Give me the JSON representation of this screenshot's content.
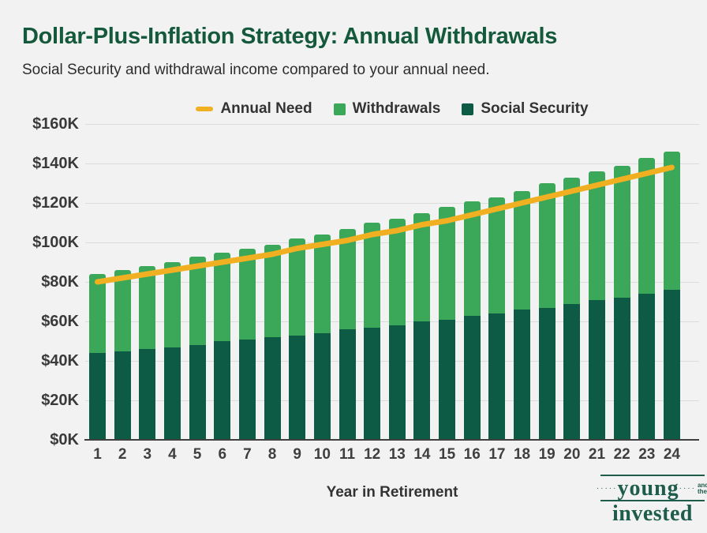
{
  "header": {
    "title": "Dollar-Plus-Inflation Strategy: Annual Withdrawals",
    "subtitle": "Social Security and withdrawal income compared to your annual need."
  },
  "colors": {
    "background": "#f2f2f2",
    "title_green": "#14593c",
    "withdrawals_green": "#3ba758",
    "social_security_green": "#0d5a45",
    "annual_need_gold": "#f0b022",
    "gridline": "#dcdcdc",
    "axis_text": "#3a3a3a",
    "logo_green": "#1e5c4b"
  },
  "legend": [
    {
      "label": "Annual Need",
      "shape": "dash",
      "color": "#f0b022"
    },
    {
      "label": "Withdrawals",
      "shape": "square",
      "color": "#3ba758"
    },
    {
      "label": "Social Security",
      "shape": "square",
      "color": "#0d5a45"
    }
  ],
  "chart_data": {
    "type": "bar",
    "stacked": true,
    "title": "Dollar-Plus-Inflation Strategy: Annual Withdrawals",
    "xlabel": "Year in Retirement",
    "ylabel": "",
    "categories": [
      1,
      2,
      3,
      4,
      5,
      6,
      7,
      8,
      9,
      10,
      11,
      12,
      13,
      14,
      15,
      16,
      17,
      18,
      19,
      20,
      21,
      22,
      23,
      24
    ],
    "series": [
      {
        "name": "Social Security",
        "color": "#0d5a45",
        "values": [
          44,
          45,
          46,
          47,
          48,
          50,
          51,
          52,
          53,
          54,
          56,
          57,
          58,
          60,
          61,
          63,
          64,
          66,
          67,
          69,
          71,
          72,
          74,
          76
        ]
      },
      {
        "name": "Withdrawals",
        "color": "#3ba758",
        "values": [
          40,
          41,
          42,
          43,
          45,
          45,
          46,
          47,
          49,
          50,
          51,
          53,
          54,
          55,
          57,
          58,
          59,
          60,
          63,
          64,
          65,
          67,
          69,
          70
        ]
      }
    ],
    "line_series": {
      "name": "Annual Need",
      "color": "#f0b022",
      "values": [
        80,
        82,
        84,
        86,
        88,
        90,
        92,
        94,
        97,
        99,
        101,
        104,
        106,
        109,
        111,
        114,
        117,
        120,
        123,
        126,
        129,
        132,
        135,
        138
      ]
    },
    "ylim": [
      0,
      160
    ],
    "ytick_step": 20,
    "ytick_labels": [
      "$0K",
      "$20K",
      "$40K",
      "$60K",
      "$80K",
      "$100K",
      "$120K",
      "$140K",
      "$160K"
    ],
    "units": "USD thousands",
    "grid": true,
    "legend_position": "top"
  },
  "x_axis": {
    "label": "Year in Retirement"
  },
  "logo": {
    "young": "young",
    "and_the": "and the",
    "invested": "invested",
    "dots_left": "·····",
    "dots_right": "····"
  }
}
